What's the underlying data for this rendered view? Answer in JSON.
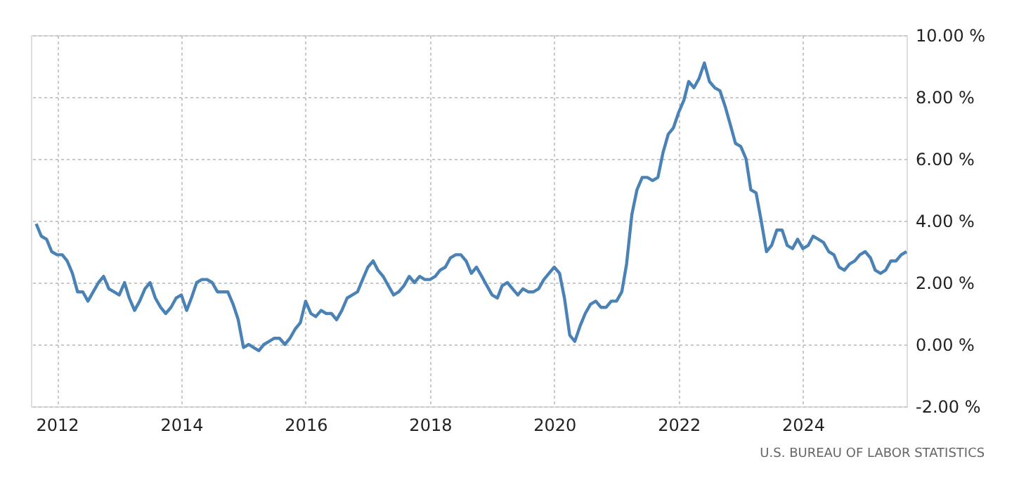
{
  "chart_data": {
    "type": "line",
    "x": [
      "2011-09",
      "2011-10",
      "2011-11",
      "2011-12",
      "2012-01",
      "2012-02",
      "2012-03",
      "2012-04",
      "2012-05",
      "2012-06",
      "2012-07",
      "2012-08",
      "2012-09",
      "2012-10",
      "2012-11",
      "2012-12",
      "2013-01",
      "2013-02",
      "2013-03",
      "2013-04",
      "2013-05",
      "2013-06",
      "2013-07",
      "2013-08",
      "2013-09",
      "2013-10",
      "2013-11",
      "2013-12",
      "2014-01",
      "2014-02",
      "2014-03",
      "2014-04",
      "2014-05",
      "2014-06",
      "2014-07",
      "2014-08",
      "2014-09",
      "2014-10",
      "2014-11",
      "2014-12",
      "2015-01",
      "2015-02",
      "2015-03",
      "2015-04",
      "2015-05",
      "2015-06",
      "2015-07",
      "2015-08",
      "2015-09",
      "2015-10",
      "2015-11",
      "2015-12",
      "2016-01",
      "2016-02",
      "2016-03",
      "2016-04",
      "2016-05",
      "2016-06",
      "2016-07",
      "2016-08",
      "2016-09",
      "2016-10",
      "2016-11",
      "2016-12",
      "2017-01",
      "2017-02",
      "2017-03",
      "2017-04",
      "2017-05",
      "2017-06",
      "2017-07",
      "2017-08",
      "2017-09",
      "2017-10",
      "2017-11",
      "2017-12",
      "2018-01",
      "2018-02",
      "2018-03",
      "2018-04",
      "2018-05",
      "2018-06",
      "2018-07",
      "2018-08",
      "2018-09",
      "2018-10",
      "2018-11",
      "2018-12",
      "2019-01",
      "2019-02",
      "2019-03",
      "2019-04",
      "2019-05",
      "2019-06",
      "2019-07",
      "2019-08",
      "2019-09",
      "2019-10",
      "2019-11",
      "2019-12",
      "2020-01",
      "2020-02",
      "2020-03",
      "2020-04",
      "2020-05",
      "2020-06",
      "2020-07",
      "2020-08",
      "2020-09",
      "2020-10",
      "2020-11",
      "2020-12",
      "2021-01",
      "2021-02",
      "2021-03",
      "2021-04",
      "2021-05",
      "2021-06",
      "2021-07",
      "2021-08",
      "2021-09",
      "2021-10",
      "2021-11",
      "2021-12",
      "2022-01",
      "2022-02",
      "2022-03",
      "2022-04",
      "2022-05",
      "2022-06",
      "2022-07",
      "2022-08",
      "2022-09",
      "2022-10",
      "2022-11",
      "2022-12",
      "2023-01",
      "2023-02",
      "2023-03",
      "2023-04",
      "2023-05",
      "2023-06",
      "2023-07",
      "2023-08",
      "2023-09",
      "2023-10",
      "2023-11",
      "2023-12",
      "2024-01",
      "2024-02",
      "2024-03",
      "2024-04",
      "2024-05",
      "2024-06",
      "2024-07",
      "2024-08",
      "2024-09",
      "2024-10",
      "2024-11",
      "2024-12",
      "2025-01",
      "2025-02",
      "2025-03",
      "2025-04",
      "2025-05",
      "2025-06",
      "2025-07",
      "2025-08",
      "2025-09"
    ],
    "series": [
      {
        "color": "#4a82b6",
        "values": [
          3.9,
          3.5,
          3.4,
          3.0,
          2.9,
          2.9,
          2.7,
          2.3,
          1.7,
          1.7,
          1.4,
          1.7,
          2.0,
          2.2,
          1.8,
          1.7,
          1.6,
          2.0,
          1.5,
          1.1,
          1.4,
          1.8,
          2.0,
          1.5,
          1.2,
          1.0,
          1.2,
          1.5,
          1.6,
          1.1,
          1.5,
          2.0,
          2.1,
          2.1,
          2.0,
          1.7,
          1.7,
          1.7,
          1.3,
          0.8,
          -0.1,
          0.0,
          -0.1,
          -0.2,
          0.0,
          0.1,
          0.2,
          0.2,
          0.0,
          0.2,
          0.5,
          0.7,
          1.4,
          1.0,
          0.9,
          1.1,
          1.0,
          1.0,
          0.8,
          1.1,
          1.5,
          1.6,
          1.7,
          2.1,
          2.5,
          2.7,
          2.4,
          2.2,
          1.9,
          1.6,
          1.7,
          1.9,
          2.2,
          2.0,
          2.2,
          2.1,
          2.1,
          2.2,
          2.4,
          2.5,
          2.8,
          2.9,
          2.9,
          2.7,
          2.3,
          2.5,
          2.2,
          1.9,
          1.6,
          1.5,
          1.9,
          2.0,
          1.8,
          1.6,
          1.8,
          1.7,
          1.7,
          1.8,
          2.1,
          2.3,
          2.5,
          2.3,
          1.5,
          0.3,
          0.1,
          0.6,
          1.0,
          1.3,
          1.4,
          1.2,
          1.2,
          1.4,
          1.4,
          1.7,
          2.6,
          4.2,
          5.0,
          5.4,
          5.4,
          5.3,
          5.4,
          6.2,
          6.8,
          7.0,
          7.5,
          7.9,
          8.5,
          8.3,
          8.6,
          9.1,
          8.5,
          8.3,
          8.2,
          7.7,
          7.1,
          6.5,
          6.4,
          6.0,
          5.0,
          4.9,
          4.0,
          3.0,
          3.2,
          3.7,
          3.7,
          3.2,
          3.1,
          3.4,
          3.1,
          3.2,
          3.5,
          3.4,
          3.3,
          3.0,
          2.9,
          2.5,
          2.4,
          2.6,
          2.7,
          2.9,
          3.0,
          2.8,
          2.4,
          2.3,
          2.4,
          2.7,
          2.7,
          2.9,
          3.0
        ]
      }
    ],
    "xlim": [
      "2011-08",
      "2025-09"
    ],
    "xticks": [
      {
        "value": "2012",
        "label": "2012"
      },
      {
        "value": "2014",
        "label": "2014"
      },
      {
        "value": "2016",
        "label": "2016"
      },
      {
        "value": "2018",
        "label": "2018"
      },
      {
        "value": "2020",
        "label": "2020"
      },
      {
        "value": "2022",
        "label": "2022"
      },
      {
        "value": "2024",
        "label": "2024"
      }
    ],
    "ylim": [
      -2,
      10
    ],
    "yticks": [
      {
        "value": -2,
        "label": "-2.00 %"
      },
      {
        "value": 0,
        "label": "0.00 %"
      },
      {
        "value": 2,
        "label": "2.00 %"
      },
      {
        "value": 4,
        "label": "4.00 %"
      },
      {
        "value": 6,
        "label": "6.00 %"
      },
      {
        "value": 8,
        "label": "8.00 %"
      },
      {
        "value": 10,
        "label": "10.00 %"
      }
    ],
    "grid": true,
    "annotations": [
      "U.S. BUREAU OF LABOR STATISTICS"
    ]
  }
}
